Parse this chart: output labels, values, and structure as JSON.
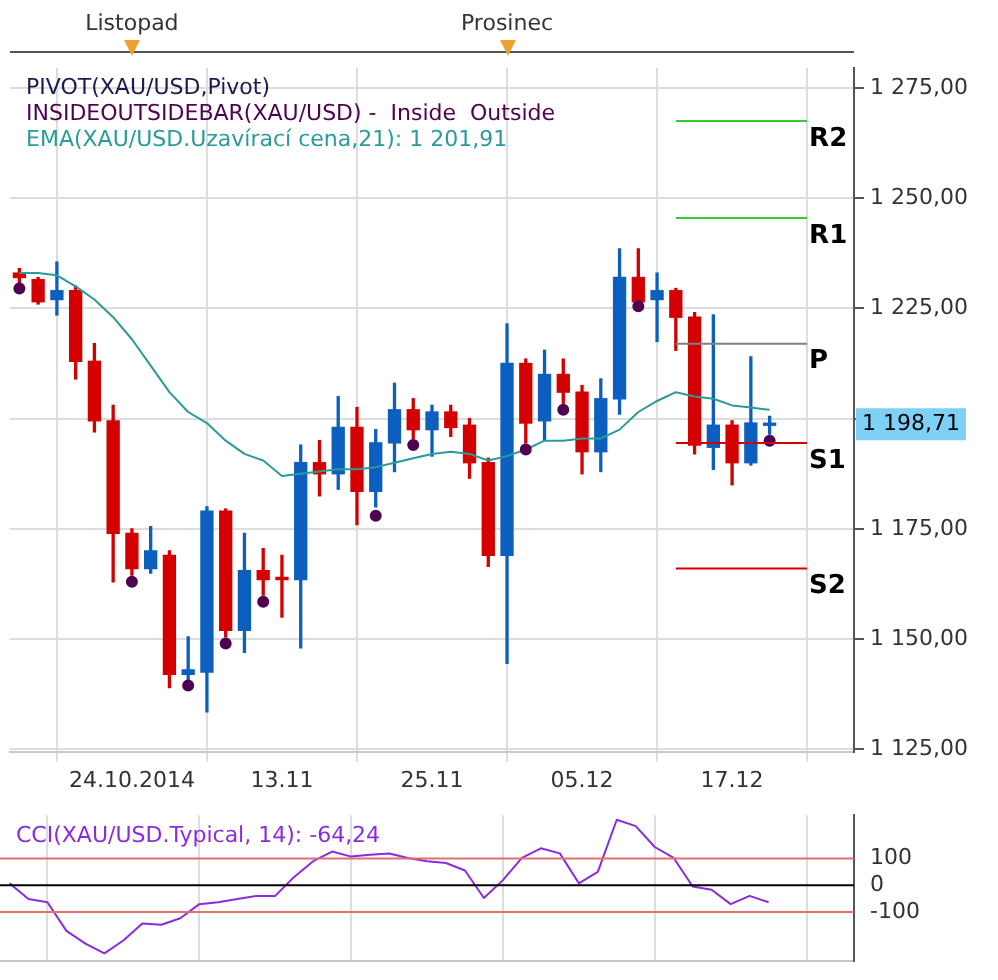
{
  "chart_data": [
    {
      "type": "candlestick",
      "annotations": [
        "Listopad",
        "Prosinec",
        "PIVOT(XAU/USD,Pivot)",
        "1 198,71"
      ],
      "categories": [
        null,
        null,
        null,
        null,
        null,
        null,
        "24.10.2014",
        null,
        null,
        null,
        null,
        null,
        null,
        null,
        "13.11",
        null,
        null,
        null,
        null,
        null,
        null,
        null,
        "25.11",
        null,
        null,
        null,
        null,
        null,
        null,
        null,
        "05.12",
        null,
        null,
        null,
        null,
        null,
        null,
        null,
        "17.12",
        null,
        null,
        null,
        null,
        null,
        null
      ],
      "series": [
        {
          "type": "candlestick",
          "ohlc": [
            [
              1233,
              1234,
              1230.5,
              1232
            ],
            [
              1231.5,
              1232,
              1226,
              1226.5
            ],
            [
              1227,
              1235.5,
              1223.5,
              1229
            ],
            [
              1229,
              1230,
              1209,
              1213
            ],
            [
              1213,
              1217,
              1197,
              1199.5
            ],
            [
              1199.5,
              1203,
              1163,
              1174
            ],
            [
              1174,
              1175,
              1164.5,
              1166
            ],
            [
              1166,
              1175.5,
              1165,
              1170
            ],
            [
              1169,
              1170,
              1139,
              1142
            ],
            [
              1142,
              1150.5,
              1140.5,
              1143
            ],
            [
              1142.5,
              1180,
              1133.5,
              1179
            ],
            [
              1179,
              1179.5,
              1150.5,
              1152
            ],
            [
              1152,
              1174,
              1147,
              1165.5
            ],
            [
              1165.5,
              1170.5,
              1160,
              1163.5
            ],
            [
              1164,
              1169,
              1155,
              1163.5
            ],
            [
              1163.5,
              1194,
              1148,
              1190
            ],
            [
              1190,
              1195,
              1182.5,
              1187.5
            ],
            [
              1187.5,
              1205,
              1184,
              1198
            ],
            [
              1198,
              1202.5,
              1176,
              1183.5
            ],
            [
              1183.5,
              1197.5,
              1180,
              1194.5
            ],
            [
              1194.5,
              1208,
              1188,
              1202
            ],
            [
              1202,
              1204.5,
              1195.5,
              1197.5
            ],
            [
              1197.5,
              1203,
              1191.5,
              1201.5
            ],
            [
              1201.5,
              1203,
              1196,
              1198
            ],
            [
              1198.5,
              1200,
              1186.5,
              1190
            ],
            [
              1190,
              1191,
              1166.5,
              1169
            ],
            [
              1169,
              1221.5,
              1144.5,
              1212.5
            ],
            [
              1212.5,
              1213.5,
              1194.5,
              1199
            ],
            [
              1199.5,
              1215.5,
              1195,
              1210
            ],
            [
              1210,
              1213.5,
              1203.5,
              1206
            ],
            [
              1206,
              1207.5,
              1187.5,
              1192.5
            ],
            [
              1192.5,
              1209,
              1188,
              1204.5
            ],
            [
              1204.5,
              1238.5,
              1201,
              1232
            ],
            [
              1232,
              1238.5,
              1226,
              1226.5
            ],
            [
              1227,
              1233,
              1217.5,
              1229
            ],
            [
              1229,
              1229.5,
              1215.5,
              1223
            ],
            [
              1223,
              1224,
              1192,
              1194
            ],
            [
              1193.5,
              1223.5,
              1188.5,
              1198.5
            ],
            [
              1198.5,
              1199.5,
              1185,
              1190
            ],
            [
              1190,
              1214,
              1189.5,
              1199
            ],
            [
              1198.5,
              1200.5,
              1196.5,
              1198.71
            ],
            null,
            null,
            null,
            null
          ],
          "colors": [
            "#d40000",
            "#d40000",
            "#0d5fbf",
            "#d40000",
            "#d40000",
            "#d40000",
            "#d40000",
            "#0d5fbf",
            "#d40000",
            "#0d5fbf",
            "#0d5fbf",
            "#d40000",
            "#0d5fbf",
            "#d40000",
            "#d40000",
            "#0d5fbf",
            "#d40000",
            "#0d5fbf",
            "#d40000",
            "#0d5fbf",
            "#0d5fbf",
            "#d40000",
            "#0d5fbf",
            "#d40000",
            "#d40000",
            "#d40000",
            "#0d5fbf",
            "#d40000",
            "#0d5fbf",
            "#d40000",
            "#d40000",
            "#0d5fbf",
            "#0d5fbf",
            "#d40000",
            "#0d5fbf",
            "#d40000",
            "#d40000",
            "#0d5fbf",
            "#d40000",
            "#0d5fbf",
            "#0d5fbf",
            null,
            null,
            null,
            null
          ]
        },
        {
          "type": "scatter",
          "name": "INSIDEOUTSIDEBAR(XAU/USD) -  Inside  Outside",
          "color": "#500050",
          "marker": "circle",
          "values": [
            1229.5,
            null,
            null,
            null,
            null,
            null,
            1163,
            null,
            null,
            1139.5,
            null,
            1149,
            null,
            1158.5,
            null,
            null,
            null,
            null,
            null,
            1178,
            null,
            1194,
            null,
            null,
            null,
            null,
            null,
            1193,
            null,
            1202,
            null,
            null,
            null,
            1225.5,
            null,
            null,
            null,
            null,
            null,
            null,
            1195,
            null,
            null,
            null,
            null
          ]
        },
        {
          "type": "line",
          "name": "EMA(XAU/USD.Uzavírací cena,21): 1 201,91",
          "color": "#2a9a9a",
          "values": [
            1233,
            1233,
            1232.5,
            1230,
            1227,
            1223,
            1218,
            1212,
            1206,
            1201.5,
            1199,
            1195,
            1192,
            1190.5,
            1187,
            1187.5,
            1188,
            1188.5,
            1188.5,
            1189,
            1190,
            1191,
            1192,
            1192.5,
            1192,
            1190.5,
            1191.5,
            1193,
            1195,
            1195,
            1195.5,
            1195.5,
            1197.5,
            1201.5,
            1204,
            1206,
            1205,
            1204.5,
            1203,
            1202.5,
            1202,
            null,
            null,
            null,
            null
          ]
        }
      ],
      "ylim": [
        1124.5,
        1279.5
      ],
      "yticks": [
        {
          "value": 1125,
          "label": "1 125,00"
        },
        {
          "value": 1150,
          "label": "1 150,00"
        },
        {
          "value": 1175,
          "label": "1 175,00"
        },
        {
          "value": 1200,
          "label": null
        },
        {
          "value": 1225,
          "label": "1 225,00"
        },
        {
          "value": 1250,
          "label": "1 250,00"
        },
        {
          "value": 1275,
          "label": "1 275,00"
        }
      ],
      "ref_lines": [
        {
          "axis": "y",
          "value": 1267.5,
          "label": "R2",
          "color": "#33cc33"
        },
        {
          "axis": "y",
          "value": 1245.5,
          "label": "R1",
          "color": "#33cc33"
        },
        {
          "axis": "y",
          "value": 1217,
          "label": "P",
          "color": "#808080"
        },
        {
          "axis": "y",
          "value": 1194.5,
          "label": "S1",
          "color": "#d40000"
        },
        {
          "axis": "y",
          "value": 1166,
          "label": "S2",
          "color": "#d40000"
        }
      ],
      "grid": true,
      "legend": "top left"
    },
    {
      "type": "line",
      "title": "CCI(XAU/USD.Typical, 14): -64,24",
      "categories": [
        null,
        null,
        null,
        null,
        null,
        null,
        "24.10.2014",
        null,
        null,
        null,
        null,
        null,
        null,
        null,
        "13.11",
        null,
        null,
        null,
        null,
        null,
        null,
        null,
        "25.11",
        null,
        null,
        null,
        null,
        null,
        null,
        null,
        "05.12",
        null,
        null,
        null,
        null,
        null,
        null,
        null,
        "17.12",
        null,
        null,
        null,
        null,
        null,
        null
      ],
      "series": [
        {
          "color": "#8a2be2",
          "values": [
            7,
            -52,
            -64,
            -171,
            -219,
            -255,
            -207,
            -143,
            -148,
            -124,
            -71,
            -64,
            -52,
            -40,
            -40,
            31,
            90,
            126,
            107,
            114,
            119,
            102,
            90,
            83,
            55,
            -48,
            19,
            102,
            138,
            119,
            7,
            50,
            245,
            221,
            143,
            102,
            -5,
            -17,
            -71,
            -40,
            -64,
            null,
            null,
            null,
            null
          ]
        }
      ],
      "ylim": [
        -283,
        262
      ],
      "yticks": [
        -100,
        0,
        100
      ],
      "ref_lines": [
        {
          "axis": "y",
          "value": 100,
          "color": "#e07070"
        },
        {
          "axis": "y",
          "value": 0,
          "color": "#000000"
        },
        {
          "axis": "y",
          "value": -100,
          "color": "#e07070"
        }
      ],
      "tick_labels": "y",
      "grid": "x"
    }
  ]
}
